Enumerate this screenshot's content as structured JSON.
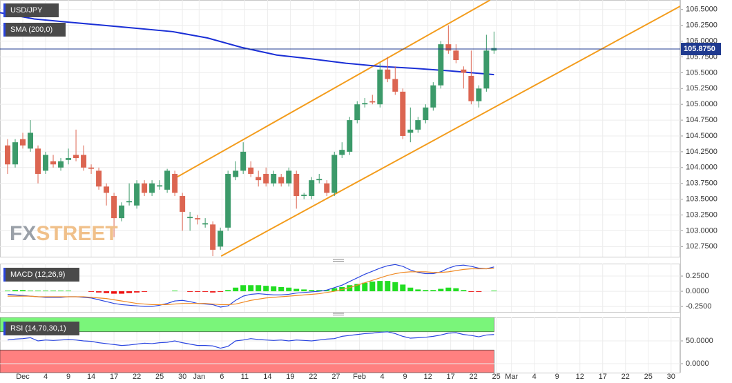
{
  "chart_data": [
    {
      "type": "candlestick",
      "title": "USD/JPY",
      "watermark": [
        "FX",
        "STREET"
      ],
      "up_color": "#3c9a6a",
      "down_color": "#dc6551",
      "xlim": [
        0,
        89.5
      ],
      "xticks": [
        {
          "value": 3,
          "label": "Dec"
        },
        {
          "value": 6,
          "label": "4"
        },
        {
          "value": 9,
          "label": "9"
        },
        {
          "value": 12,
          "label": "14"
        },
        {
          "value": 15,
          "label": "17"
        },
        {
          "value": 18,
          "label": "22"
        },
        {
          "value": 21,
          "label": "25"
        },
        {
          "value": 24,
          "label": "30"
        },
        {
          "value": 26.2,
          "label": "Jan"
        },
        {
          "value": 29.2,
          "label": "6"
        },
        {
          "value": 32.2,
          "label": "11"
        },
        {
          "value": 35.2,
          "label": "14"
        },
        {
          "value": 38.2,
          "label": "19"
        },
        {
          "value": 41.2,
          "label": "22"
        },
        {
          "value": 44.2,
          "label": "27"
        },
        {
          "value": 47.3,
          "label": "Feb"
        },
        {
          "value": 50.3,
          "label": "4"
        },
        {
          "value": 53.3,
          "label": "9"
        },
        {
          "value": 56.3,
          "label": "12"
        },
        {
          "value": 59.3,
          "label": "17"
        },
        {
          "value": 62.3,
          "label": "22"
        },
        {
          "value": 65.3,
          "label": "25"
        },
        {
          "value": 67.3,
          "label": "Mar"
        },
        {
          "value": 70.3,
          "label": "4"
        },
        {
          "value": 73.3,
          "label": "9"
        },
        {
          "value": 76.3,
          "label": "12"
        },
        {
          "value": 79.3,
          "label": "17"
        },
        {
          "value": 82.3,
          "label": "22"
        },
        {
          "value": 85.3,
          "label": "25"
        },
        {
          "value": 88.3,
          "label": "30"
        }
      ],
      "ylim": [
        102.59,
        106.65
      ],
      "yticks": [
        {
          "value": 102.75,
          "label": "102.7500"
        },
        {
          "value": 103,
          "label": "103.0000"
        },
        {
          "value": 103.25,
          "label": "103.2500"
        },
        {
          "value": 103.5,
          "label": "103.5000"
        },
        {
          "value": 103.75,
          "label": "103.7500"
        },
        {
          "value": 104,
          "label": "104.0000"
        },
        {
          "value": 104.25,
          "label": "104.2500"
        },
        {
          "value": 104.5,
          "label": "104.5000"
        },
        {
          "value": 104.75,
          "label": "104.7500"
        },
        {
          "value": 105,
          "label": "105.0000"
        },
        {
          "value": 105.25,
          "label": "105.2500"
        },
        {
          "value": 105.5,
          "label": "105.5000"
        },
        {
          "value": 105.75,
          "label": "105.7500"
        },
        {
          "value": 106,
          "label": "106.0000"
        },
        {
          "value": 106.25,
          "label": "106.2500"
        },
        {
          "value": 106.5,
          "label": "106.5000"
        }
      ],
      "last_price": {
        "value": 105.875,
        "label": "105.8750",
        "color": "#1f3a8f"
      },
      "candles": {
        "x": [
          1,
          2,
          3,
          4,
          5,
          6,
          7,
          8,
          9,
          10,
          11,
          12,
          13,
          14,
          15,
          16,
          17,
          18,
          19,
          20,
          21,
          22,
          23,
          24,
          25,
          26,
          27,
          28,
          29,
          30,
          31,
          32,
          33,
          34,
          35,
          36,
          37,
          38,
          39,
          40,
          41,
          42,
          43,
          44,
          45,
          46,
          47,
          48,
          49,
          50,
          51,
          52,
          53,
          54,
          55,
          56,
          57,
          58,
          59,
          60,
          61,
          62,
          63,
          64,
          65
        ],
        "open": [
          104.35,
          104.05,
          104.45,
          104.3,
          104.3,
          103.95,
          104.1,
          104.0,
          104.12,
          104.2,
          104.2,
          104.0,
          103.95,
          103.7,
          103.55,
          103.2,
          103.45,
          103.4,
          103.75,
          103.6,
          103.7,
          103.65,
          103.9,
          103.55,
          103.2,
          103.2,
          103.1,
          103.1,
          102.75,
          103.05,
          103.85,
          103.95,
          104.0,
          103.85,
          103.9,
          103.75,
          103.85,
          103.75,
          103.9,
          103.55,
          103.55,
          103.8,
          103.75,
          103.6,
          104.2,
          104.25,
          104.75,
          105.0,
          105.05,
          105.0,
          105.55,
          105.4,
          105.2,
          104.55,
          104.6,
          104.75,
          104.95,
          105.3,
          105.95,
          105.85,
          105.55,
          105.45,
          105.05,
          105.25,
          105.85
        ],
        "close": [
          104.05,
          104.4,
          104.35,
          104.55,
          103.9,
          104.2,
          104.05,
          104.1,
          104.15,
          104.15,
          104.0,
          103.98,
          103.7,
          103.6,
          103.2,
          103.4,
          103.47,
          103.75,
          103.6,
          103.75,
          103.72,
          103.95,
          103.6,
          103.3,
          103.22,
          103.18,
          103.12,
          102.7,
          103.0,
          103.9,
          103.95,
          104.25,
          103.9,
          103.8,
          103.75,
          103.9,
          103.75,
          103.95,
          103.55,
          103.57,
          103.8,
          103.82,
          103.6,
          104.2,
          104.28,
          104.75,
          105.0,
          105.02,
          105.03,
          105.55,
          105.4,
          105.2,
          104.5,
          104.6,
          104.75,
          104.95,
          105.3,
          105.95,
          105.85,
          105.7,
          105.5,
          105.05,
          105.25,
          105.85,
          105.89
        ],
        "high": [
          104.45,
          104.45,
          104.55,
          104.75,
          104.35,
          104.25,
          104.2,
          104.15,
          104.3,
          104.6,
          104.35,
          104.05,
          104.0,
          103.75,
          103.6,
          103.45,
          103.75,
          103.8,
          103.8,
          103.8,
          103.8,
          103.98,
          103.95,
          103.6,
          103.3,
          103.25,
          103.2,
          103.15,
          103.05,
          103.95,
          104.1,
          104.4,
          104.1,
          103.95,
          104.0,
          103.95,
          103.9,
          104.0,
          103.95,
          103.6,
          103.85,
          103.9,
          103.8,
          104.25,
          104.4,
          104.8,
          105.05,
          105.1,
          105.15,
          105.65,
          105.75,
          105.6,
          105.25,
          104.95,
          104.8,
          105.0,
          105.35,
          106.0,
          106.25,
          105.95,
          105.6,
          105.85,
          105.3,
          106.1,
          106.15
        ],
        "low": [
          103.9,
          104.0,
          104.3,
          104.25,
          103.75,
          103.9,
          104.0,
          103.95,
          104.05,
          104.1,
          103.95,
          103.9,
          103.65,
          103.4,
          102.9,
          103.15,
          103.4,
          103.35,
          103.55,
          103.55,
          103.65,
          103.6,
          103.55,
          103.0,
          103.0,
          103.1,
          103.05,
          102.6,
          102.7,
          103.0,
          103.8,
          103.9,
          103.85,
          103.7,
          103.7,
          103.7,
          103.7,
          103.7,
          103.35,
          103.5,
          103.5,
          103.75,
          103.55,
          103.55,
          104.15,
          104.2,
          104.7,
          104.95,
          105.0,
          104.95,
          105.35,
          105.15,
          104.45,
          104.4,
          104.55,
          104.7,
          104.9,
          105.25,
          105.8,
          105.65,
          105.25,
          105.0,
          104.95,
          105.2,
          105.8
        ]
      },
      "overlays": [
        {
          "name": "SMA (200,0)",
          "color": "#1a2fd6",
          "x": [
            0,
            4.5,
            9,
            13.6,
            18.2,
            22.7,
            27.3,
            31.8,
            36.4,
            40.9,
            45.5,
            50,
            54.5,
            59.1,
            65
          ],
          "values": [
            106.45,
            106.35,
            106.3,
            106.25,
            106.2,
            106.15,
            106.05,
            105.9,
            105.78,
            105.72,
            105.65,
            105.6,
            105.57,
            105.53,
            105.47
          ]
        }
      ],
      "trend_lines": [
        {
          "color": "#f39c1c",
          "x": [
            23,
            64.5
          ],
          "values": [
            103.83,
            106.65
          ]
        },
        {
          "color": "#f39c1c",
          "x": [
            29.1,
            91
          ],
          "values": [
            102.6,
            106.65
          ]
        }
      ]
    },
    {
      "type": "macd",
      "title": "MACD (12,26,9)",
      "up_color": "#22dd22",
      "down_color": "#ee1111",
      "ylim": [
        -0.34,
        0.455
      ],
      "yticks": [
        {
          "value": 0.25,
          "label": "0.2500"
        },
        {
          "value": 0,
          "label": "0.0000"
        },
        {
          "value": -0.25,
          "label": "-0.2500"
        }
      ],
      "histogram": [
        0.01,
        0.02,
        0.02,
        0.01,
        0.01,
        0.01,
        0.01,
        0.01,
        0.01,
        0.0,
        0.0,
        -0.01,
        -0.02,
        -0.03,
        -0.04,
        -0.04,
        -0.03,
        -0.02,
        -0.01,
        0.0,
        0.0,
        0.0,
        0.01,
        0.0,
        -0.01,
        -0.01,
        -0.01,
        -0.02,
        -0.01,
        0.02,
        0.06,
        0.1,
        0.1,
        0.1,
        0.09,
        0.08,
        0.07,
        0.06,
        0.04,
        0.03,
        0.02,
        0.02,
        0.02,
        0.05,
        0.07,
        0.1,
        0.12,
        0.14,
        0.16,
        0.17,
        0.17,
        0.15,
        0.11,
        0.06,
        0.03,
        0.02,
        0.02,
        0.04,
        0.06,
        0.05,
        0.02,
        -0.01,
        -0.01,
        0.0,
        0.01
      ],
      "series": [
        {
          "color": "#2a45e0",
          "values": [
            -0.05,
            -0.06,
            -0.07,
            -0.08,
            -0.09,
            -0.1,
            -0.1,
            -0.1,
            -0.09,
            -0.09,
            -0.1,
            -0.11,
            -0.14,
            -0.17,
            -0.2,
            -0.22,
            -0.23,
            -0.24,
            -0.25,
            -0.25,
            -0.23,
            -0.2,
            -0.16,
            -0.15,
            -0.17,
            -0.2,
            -0.21,
            -0.22,
            -0.26,
            -0.24,
            -0.15,
            -0.08,
            -0.05,
            -0.04,
            -0.05,
            -0.06,
            -0.06,
            -0.05,
            -0.03,
            -0.02,
            -0.01,
            0.0,
            0.02,
            0.06,
            0.1,
            0.16,
            0.22,
            0.28,
            0.33,
            0.38,
            0.42,
            0.44,
            0.41,
            0.35,
            0.31,
            0.29,
            0.29,
            0.32,
            0.38,
            0.42,
            0.43,
            0.41,
            0.38,
            0.37,
            0.4
          ]
        },
        {
          "color": "#f08a24",
          "values": [
            -0.08,
            -0.08,
            -0.08,
            -0.08,
            -0.09,
            -0.09,
            -0.09,
            -0.09,
            -0.09,
            -0.09,
            -0.09,
            -0.1,
            -0.11,
            -0.12,
            -0.14,
            -0.16,
            -0.18,
            -0.2,
            -0.21,
            -0.22,
            -0.22,
            -0.22,
            -0.21,
            -0.2,
            -0.2,
            -0.2,
            -0.2,
            -0.21,
            -0.22,
            -0.22,
            -0.21,
            -0.18,
            -0.15,
            -0.13,
            -0.11,
            -0.1,
            -0.09,
            -0.08,
            -0.07,
            -0.06,
            -0.05,
            -0.04,
            -0.02,
            0.0,
            0.03,
            0.06,
            0.1,
            0.14,
            0.18,
            0.22,
            0.26,
            0.29,
            0.31,
            0.32,
            0.32,
            0.32,
            0.31,
            0.31,
            0.32,
            0.34,
            0.36,
            0.37,
            0.37,
            0.37,
            0.38
          ]
        }
      ]
    },
    {
      "type": "rsi",
      "title": "RSI (14,70,30,1)",
      "ylim": [
        -19.7,
        101.5
      ],
      "yticks": [
        {
          "value": 50,
          "label": "50.0000"
        },
        {
          "value": 0,
          "label": "0.0000"
        }
      ],
      "overbought": {
        "value": 70,
        "color": "#7af57a"
      },
      "oversold": {
        "value": 30,
        "color": "#ff8080"
      },
      "series": [
        {
          "color": "#2a45e0",
          "values": [
            52,
            54,
            55,
            57,
            50,
            52,
            51,
            52,
            53,
            52,
            50,
            49,
            46,
            44,
            42,
            40,
            41,
            43,
            45,
            44,
            46,
            47,
            50,
            46,
            43,
            40,
            40,
            39,
            34,
            38,
            50,
            52,
            55,
            53,
            52,
            51,
            52,
            50,
            52,
            51,
            50,
            52,
            54,
            55,
            60,
            62,
            64,
            66,
            67,
            69,
            70,
            66,
            60,
            56,
            57,
            58,
            60,
            63,
            67,
            68,
            64,
            62,
            59,
            63,
            64
          ]
        }
      ]
    }
  ]
}
